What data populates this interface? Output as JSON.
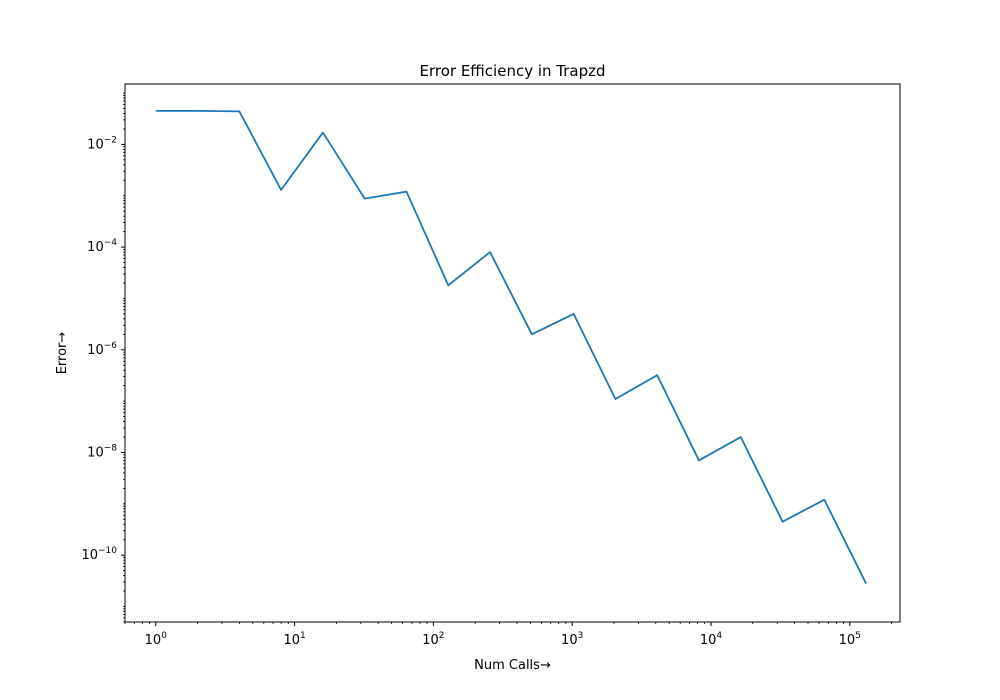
{
  "chart_data": {
    "type": "line",
    "title": "Error Efficiency in Trapzd",
    "xlabel": "Num Calls→",
    "ylabel": "Error→",
    "xscale": "log",
    "yscale": "log",
    "xlim": [
      0.6,
      230000
    ],
    "ylim": [
      5e-12,
      0.15
    ],
    "grid": false,
    "legend": "none",
    "x_ticks": [
      {
        "base": "10",
        "exp": "0",
        "value": 1
      },
      {
        "base": "10",
        "exp": "1",
        "value": 10
      },
      {
        "base": "10",
        "exp": "2",
        "value": 100
      },
      {
        "base": "10",
        "exp": "3",
        "value": 1000
      },
      {
        "base": "10",
        "exp": "4",
        "value": 10000
      },
      {
        "base": "10",
        "exp": "5",
        "value": 100000
      }
    ],
    "y_ticks": [
      {
        "base": "10",
        "exp": "−10",
        "value": 1e-10
      },
      {
        "base": "10",
        "exp": "−8",
        "value": 1e-08
      },
      {
        "base": "10",
        "exp": "−6",
        "value": 1e-06
      },
      {
        "base": "10",
        "exp": "−4",
        "value": 0.0001
      },
      {
        "base": "10",
        "exp": "−2",
        "value": 0.01
      }
    ],
    "series": [
      {
        "color": "#1f77b4",
        "x": [
          1,
          2,
          4,
          8,
          16,
          32,
          64,
          128,
          256,
          512,
          1024,
          2048,
          4096,
          8192,
          16384,
          32768,
          65536,
          131072
        ],
        "y": [
          0.045,
          0.045,
          0.044,
          0.0013,
          0.017,
          0.00088,
          0.0012,
          1.8e-05,
          8e-05,
          2e-06,
          5e-06,
          1.1e-07,
          3.2e-07,
          7e-09,
          2e-08,
          4.5e-10,
          1.2e-09,
          2.8e-11
        ]
      }
    ]
  }
}
